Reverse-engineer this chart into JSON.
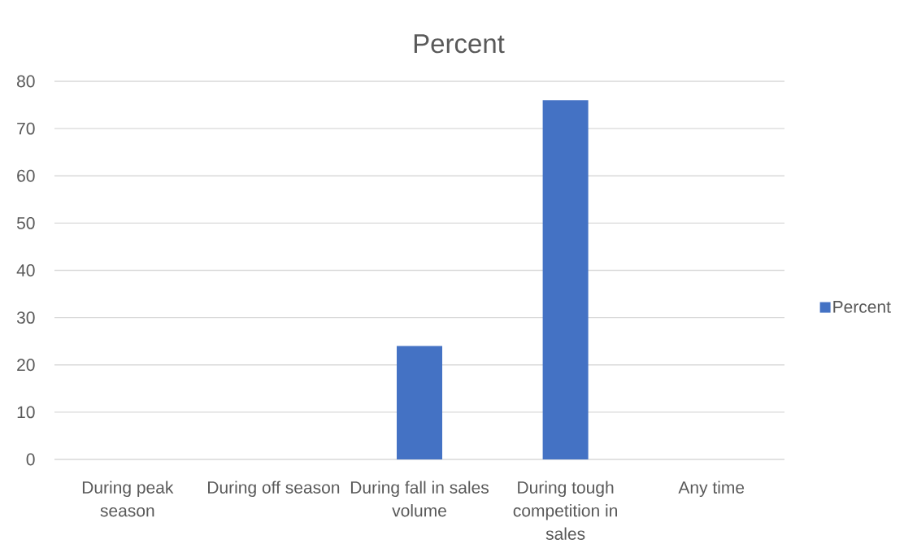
{
  "chart_data": {
    "type": "bar",
    "title": "Percent",
    "categories": [
      "During peak season",
      "During off season",
      "During fall in sales volume",
      "During tough competition in sales",
      "Any time"
    ],
    "series": [
      {
        "name": "Percent",
        "color": "#4472c4",
        "values": [
          0,
          0,
          24,
          76,
          0
        ]
      }
    ],
    "ylim": [
      0,
      80
    ],
    "yticks": [
      0,
      10,
      20,
      30,
      40,
      50,
      60,
      70,
      80
    ],
    "grid": "y",
    "legend": "right"
  }
}
